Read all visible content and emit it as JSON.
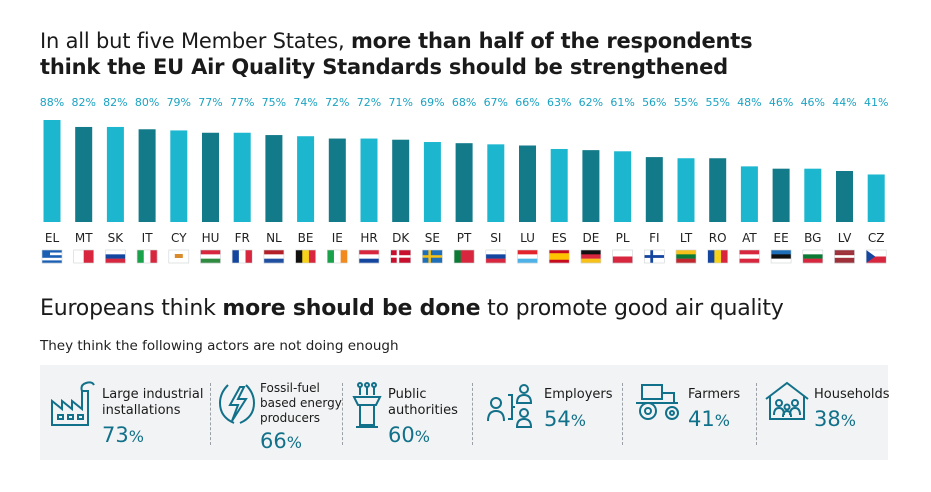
{
  "title1": {
    "line1_normal": "In all but five Member States, ",
    "line1_bold": "more than half of the respondents",
    "line2_bold": "think the EU Air Quality Standards should be strengthened"
  },
  "chart_data": {
    "type": "bar",
    "title": "In all but five Member States, more than half of the respondents think the EU Air Quality Standards should be strengthened",
    "categories": [
      "EL",
      "MT",
      "SK",
      "IT",
      "CY",
      "HU",
      "FR",
      "NL",
      "BE",
      "IE",
      "HR",
      "DK",
      "SE",
      "PT",
      "SI",
      "LU",
      "ES",
      "DE",
      "PL",
      "FI",
      "LT",
      "RO",
      "AT",
      "EE",
      "BG",
      "LV",
      "CZ"
    ],
    "values": [
      88,
      82,
      82,
      80,
      79,
      77,
      77,
      75,
      74,
      72,
      72,
      71,
      69,
      68,
      67,
      66,
      63,
      62,
      61,
      56,
      55,
      55,
      48,
      46,
      46,
      44,
      41
    ],
    "labels": [
      "88%",
      "82%",
      "82%",
      "80%",
      "79%",
      "77%",
      "77%",
      "75%",
      "74%",
      "72%",
      "72%",
      "71%",
      "69%",
      "68%",
      "67%",
      "66%",
      "63%",
      "62%",
      "61%",
      "56%",
      "55%",
      "55%",
      "48%",
      "46%",
      "46%",
      "44%",
      "41%"
    ],
    "ylim": [
      0,
      88
    ],
    "xlabel": "",
    "ylabel": ""
  },
  "flags": [
    "flag-el",
    "flag-mt",
    "flag-sk",
    "flag-it",
    "flag-cy",
    "flag-hu",
    "flag-fr",
    "flag-nl",
    "flag-be",
    "flag-ie",
    "flag-hr",
    "flag-dk",
    "flag-se",
    "flag-pt",
    "flag-si",
    "flag-lu",
    "flag-es",
    "flag-de",
    "flag-pl",
    "flag-fi",
    "flag-lt",
    "flag-ro",
    "flag-at",
    "flag-ee",
    "flag-bg",
    "flag-lv",
    "flag-cz"
  ],
  "colors": {
    "bar_light": "#1cb6cf",
    "bar_dark": "#127a88",
    "pct_text": "#1aa3c2",
    "value_text": "#12718a",
    "panel_bg": "#f2f3f4"
  },
  "section2": {
    "title_normal1": "Europeans think ",
    "title_bold": "more should be done",
    "title_normal2": " to promote good air quality",
    "subtitle": "They think the following actors are not doing enough"
  },
  "actors": [
    {
      "icon": "factory-icon",
      "label_lines": [
        "Large industrial",
        "installations"
      ],
      "value": "73",
      "unit": "%"
    },
    {
      "icon": "lightning-icon",
      "label_lines": [
        "Fossil-fuel",
        "based energy",
        "producers"
      ],
      "value": "66",
      "unit": "%"
    },
    {
      "icon": "podium-icon",
      "label_lines": [
        "Public",
        "authorities"
      ],
      "value": "60",
      "unit": "%"
    },
    {
      "icon": "employees-icon",
      "label_lines": [
        "Employers"
      ],
      "value": "54",
      "unit": "%"
    },
    {
      "icon": "tractor-icon",
      "label_lines": [
        "Farmers"
      ],
      "value": "41",
      "unit": "%"
    },
    {
      "icon": "household-icon",
      "label_lines": [
        "Households"
      ],
      "value": "38",
      "unit": "%"
    }
  ]
}
